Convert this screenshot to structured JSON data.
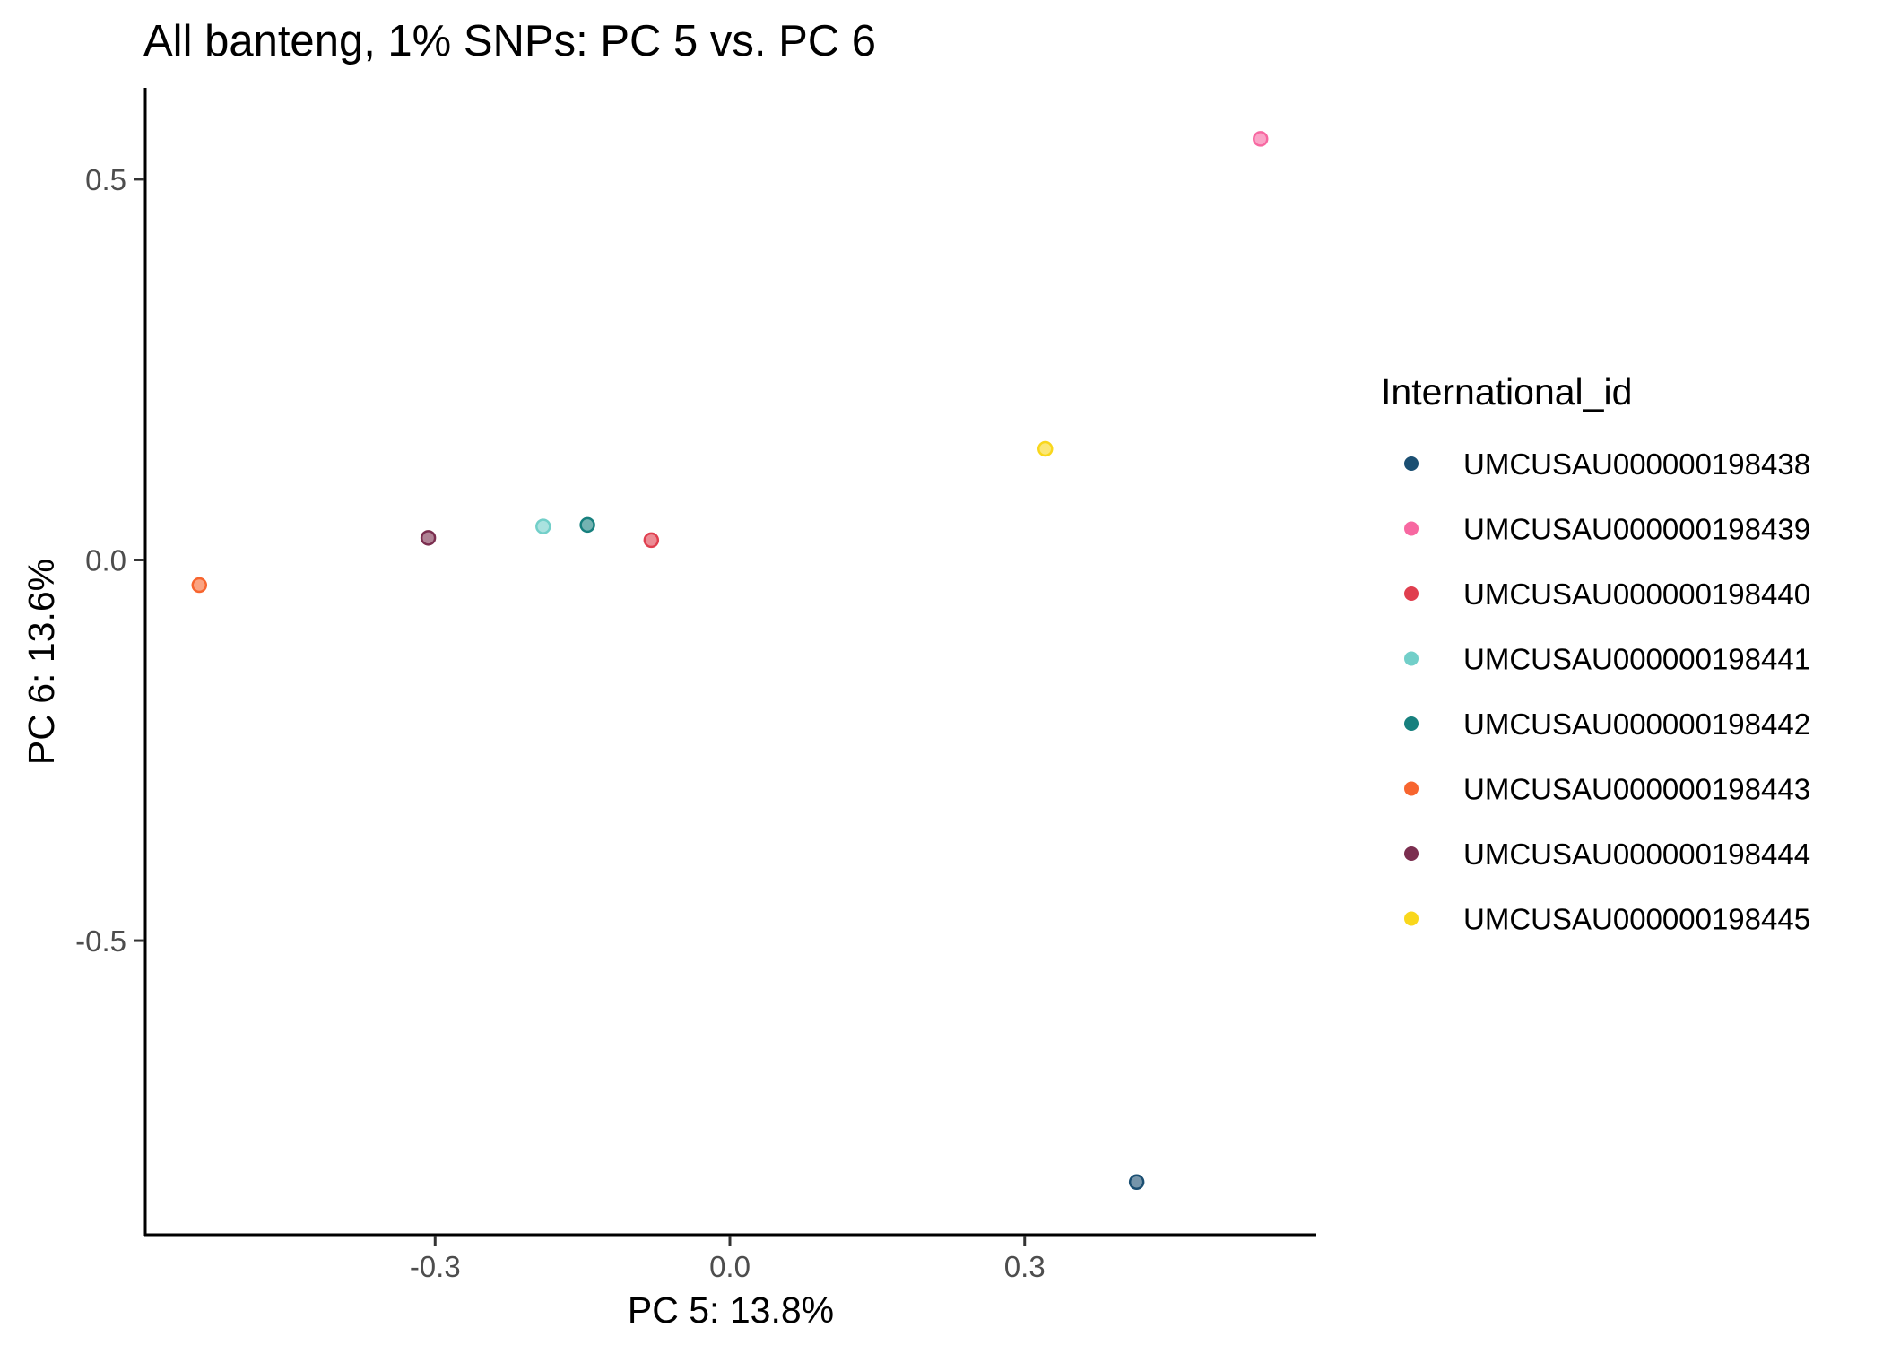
{
  "chart_data": {
    "type": "scatter",
    "title": "All banteng, 1% SNPs: PC 5 vs. PC 6",
    "xlabel": "PC 5: 13.8%",
    "ylabel": "PC 6: 13.6%",
    "xlim": [
      -0.595,
      0.595
    ],
    "ylim": [
      -0.885,
      0.62
    ],
    "xticks": [
      {
        "value": -0.3,
        "label": "-0.3"
      },
      {
        "value": 0.0,
        "label": "0.0"
      },
      {
        "value": 0.3,
        "label": "0.3"
      }
    ],
    "yticks": [
      {
        "value": 0.5,
        "label": "0.5"
      },
      {
        "value": 0.0,
        "label": "0.0"
      },
      {
        "value": -0.5,
        "label": "-0.5"
      }
    ],
    "grid": false,
    "legend": {
      "title": "International_id",
      "position": "right"
    },
    "series": [
      {
        "name": "UMCUSAU000000198438",
        "color": "#1b4f72",
        "points": [
          [
            0.414,
            -0.817
          ]
        ]
      },
      {
        "name": "UMCUSAU000000198439",
        "color": "#f768a1",
        "points": [
          [
            0.54,
            0.553
          ]
        ]
      },
      {
        "name": "UMCUSAU000000198440",
        "color": "#e03f4f",
        "points": [
          [
            -0.08,
            0.026
          ]
        ]
      },
      {
        "name": "UMCUSAU000000198441",
        "color": "#72cfc9",
        "points": [
          [
            -0.19,
            0.044
          ]
        ]
      },
      {
        "name": "UMCUSAU000000198442",
        "color": "#17807e",
        "points": [
          [
            -0.145,
            0.046
          ]
        ]
      },
      {
        "name": "UMCUSAU000000198443",
        "color": "#f7652f",
        "points": [
          [
            -0.54,
            -0.033
          ]
        ]
      },
      {
        "name": "UMCUSAU000000198444",
        "color": "#7b2e4f",
        "points": [
          [
            -0.307,
            0.029
          ]
        ]
      },
      {
        "name": "UMCUSAU000000198445",
        "color": "#f9d71c",
        "points": [
          [
            0.321,
            0.146
          ]
        ]
      }
    ]
  }
}
